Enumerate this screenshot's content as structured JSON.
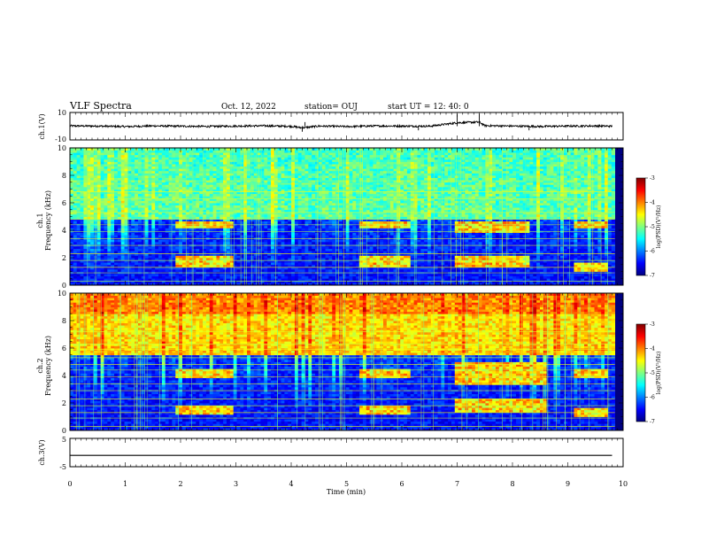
{
  "header": {
    "title": "VLF Spectra",
    "date": "Oct. 12, 2022",
    "station": "station= OUJ",
    "start": "start  UT =   12: 40: 0"
  },
  "colors": {
    "jet": [
      "#000080",
      "#0000ff",
      "#0080ff",
      "#00ffff",
      "#80ff80",
      "#ffff00",
      "#ff8000",
      "#ff0000",
      "#800000"
    ],
    "trace": "#000000",
    "background": "#ffffff"
  },
  "chart_data": [
    {
      "type": "line",
      "panel": "ch1-waveform",
      "ylabel": "ch.1(V)",
      "ylim": [
        -10,
        10
      ],
      "yticks": [
        "10",
        "-10"
      ],
      "xlim": [
        0,
        10
      ],
      "series": [
        {
          "x": [
            0,
            0.5,
            1,
            1.5,
            2,
            2.5,
            3,
            3.5,
            4,
            4.2,
            4.5,
            5,
            5.5,
            6,
            6.5,
            7,
            7.4,
            7.5,
            8,
            8.5,
            9,
            9.5,
            9.8
          ],
          "values": [
            0.2,
            0.1,
            -0.3,
            0.2,
            0.0,
            -0.2,
            0.1,
            0.3,
            -0.1,
            -1.2,
            0.1,
            -0.3,
            0.2,
            0.1,
            0.0,
            2.5,
            3.0,
            0.4,
            0.1,
            -0.2,
            0.1,
            0.2,
            0.0
          ]
        }
      ]
    },
    {
      "type": "heatmap",
      "panel": "ch1-spectrogram",
      "ylabel": "ch.1",
      "ylabel2": "Frequency  (kHz)",
      "ylim": [
        0,
        10
      ],
      "yticks": [
        "0",
        "2",
        "4",
        "6",
        "8",
        "10"
      ],
      "xlim": [
        0,
        10
      ],
      "colorbar": {
        "range": [
          -7,
          -3
        ],
        "ticks": [
          "-3",
          "-4",
          "-5",
          "-6",
          "-7"
        ],
        "label": "log(PSD)(V²/Hz)"
      },
      "broadband_level_log_psd": -5.2,
      "band_top_khz": 4.9,
      "chorus_bursts": [
        {
          "t_start": 1.9,
          "t_end": 2.9,
          "f_low_khz": 1.4,
          "f_high_khz": 2.1
        },
        {
          "t_start": 1.9,
          "t_end": 2.9,
          "f_low_khz": 4.2,
          "f_high_khz": 4.7
        },
        {
          "t_start": 5.2,
          "t_end": 6.1,
          "f_low_khz": 1.4,
          "f_high_khz": 2.2
        },
        {
          "t_start": 5.2,
          "t_end": 6.1,
          "f_low_khz": 4.2,
          "f_high_khz": 4.7
        },
        {
          "t_start": 6.9,
          "t_end": 8.3,
          "f_low_khz": 1.4,
          "f_high_khz": 2.2
        },
        {
          "t_start": 6.9,
          "t_end": 8.3,
          "f_low_khz": 3.9,
          "f_high_khz": 4.7
        },
        {
          "t_start": 9.1,
          "t_end": 9.7,
          "f_low_khz": 1.0,
          "f_high_khz": 1.6
        },
        {
          "t_start": 9.1,
          "t_end": 9.7,
          "f_low_khz": 4.2,
          "f_high_khz": 4.7
        }
      ],
      "lines_khz": [
        0.3,
        0.9,
        1.3,
        1.8,
        2.3,
        2.9,
        3.4,
        3.9,
        4.4,
        4.8,
        5.3,
        6.3,
        6.8,
        7.6
      ]
    },
    {
      "type": "heatmap",
      "panel": "ch2-spectrogram",
      "ylabel": "ch.2",
      "ylabel2": "Frequency  (kHz)",
      "ylim": [
        0,
        10
      ],
      "yticks": [
        "0",
        "2",
        "4",
        "6",
        "8",
        "10"
      ],
      "xlim": [
        0,
        10
      ],
      "colorbar": {
        "range": [
          -7,
          -3
        ],
        "ticks": [
          "-3",
          "-4",
          "-5",
          "-6",
          "-7"
        ],
        "label": "log(PSD)(V²/Hz)"
      },
      "broadband_level_log_psd": -4.4,
      "band_top_khz": 5.5,
      "chorus_bursts": [
        {
          "t_start": 1.9,
          "t_end": 2.9,
          "f_low_khz": 1.2,
          "f_high_khz": 1.9
        },
        {
          "t_start": 1.9,
          "t_end": 2.9,
          "f_low_khz": 3.8,
          "f_high_khz": 4.5
        },
        {
          "t_start": 5.2,
          "t_end": 6.1,
          "f_low_khz": 1.2,
          "f_high_khz": 1.9
        },
        {
          "t_start": 5.2,
          "t_end": 6.1,
          "f_low_khz": 3.8,
          "f_high_khz": 4.5
        },
        {
          "t_start": 6.9,
          "t_end": 8.6,
          "f_low_khz": 1.4,
          "f_high_khz": 2.3
        },
        {
          "t_start": 6.9,
          "t_end": 8.6,
          "f_low_khz": 3.4,
          "f_high_khz": 5.0
        },
        {
          "t_start": 9.1,
          "t_end": 9.7,
          "f_low_khz": 1.0,
          "f_high_khz": 1.6
        },
        {
          "t_start": 9.1,
          "t_end": 9.7,
          "f_low_khz": 3.9,
          "f_high_khz": 4.5
        }
      ],
      "lines_khz": [
        0.3,
        0.9,
        1.3,
        1.8,
        2.3,
        2.9,
        3.4,
        3.9,
        4.4,
        4.8,
        5.3,
        5.9,
        6.3,
        7.2
      ]
    },
    {
      "type": "line",
      "panel": "ch3-waveform",
      "ylabel": "ch.3(V)",
      "ylim": [
        -5,
        5
      ],
      "yticks": [
        "5",
        "-5"
      ],
      "xlim": [
        0,
        10
      ],
      "series": [
        {
          "x": [
            0,
            9.8
          ],
          "values": [
            -1.0,
            -1.0
          ]
        }
      ]
    }
  ],
  "xaxis": {
    "label": "Time  (min)",
    "ticks": [
      "0",
      "1",
      "2",
      "3",
      "4",
      "5",
      "6",
      "7",
      "8",
      "9",
      "10"
    ],
    "range": [
      0,
      10
    ]
  }
}
